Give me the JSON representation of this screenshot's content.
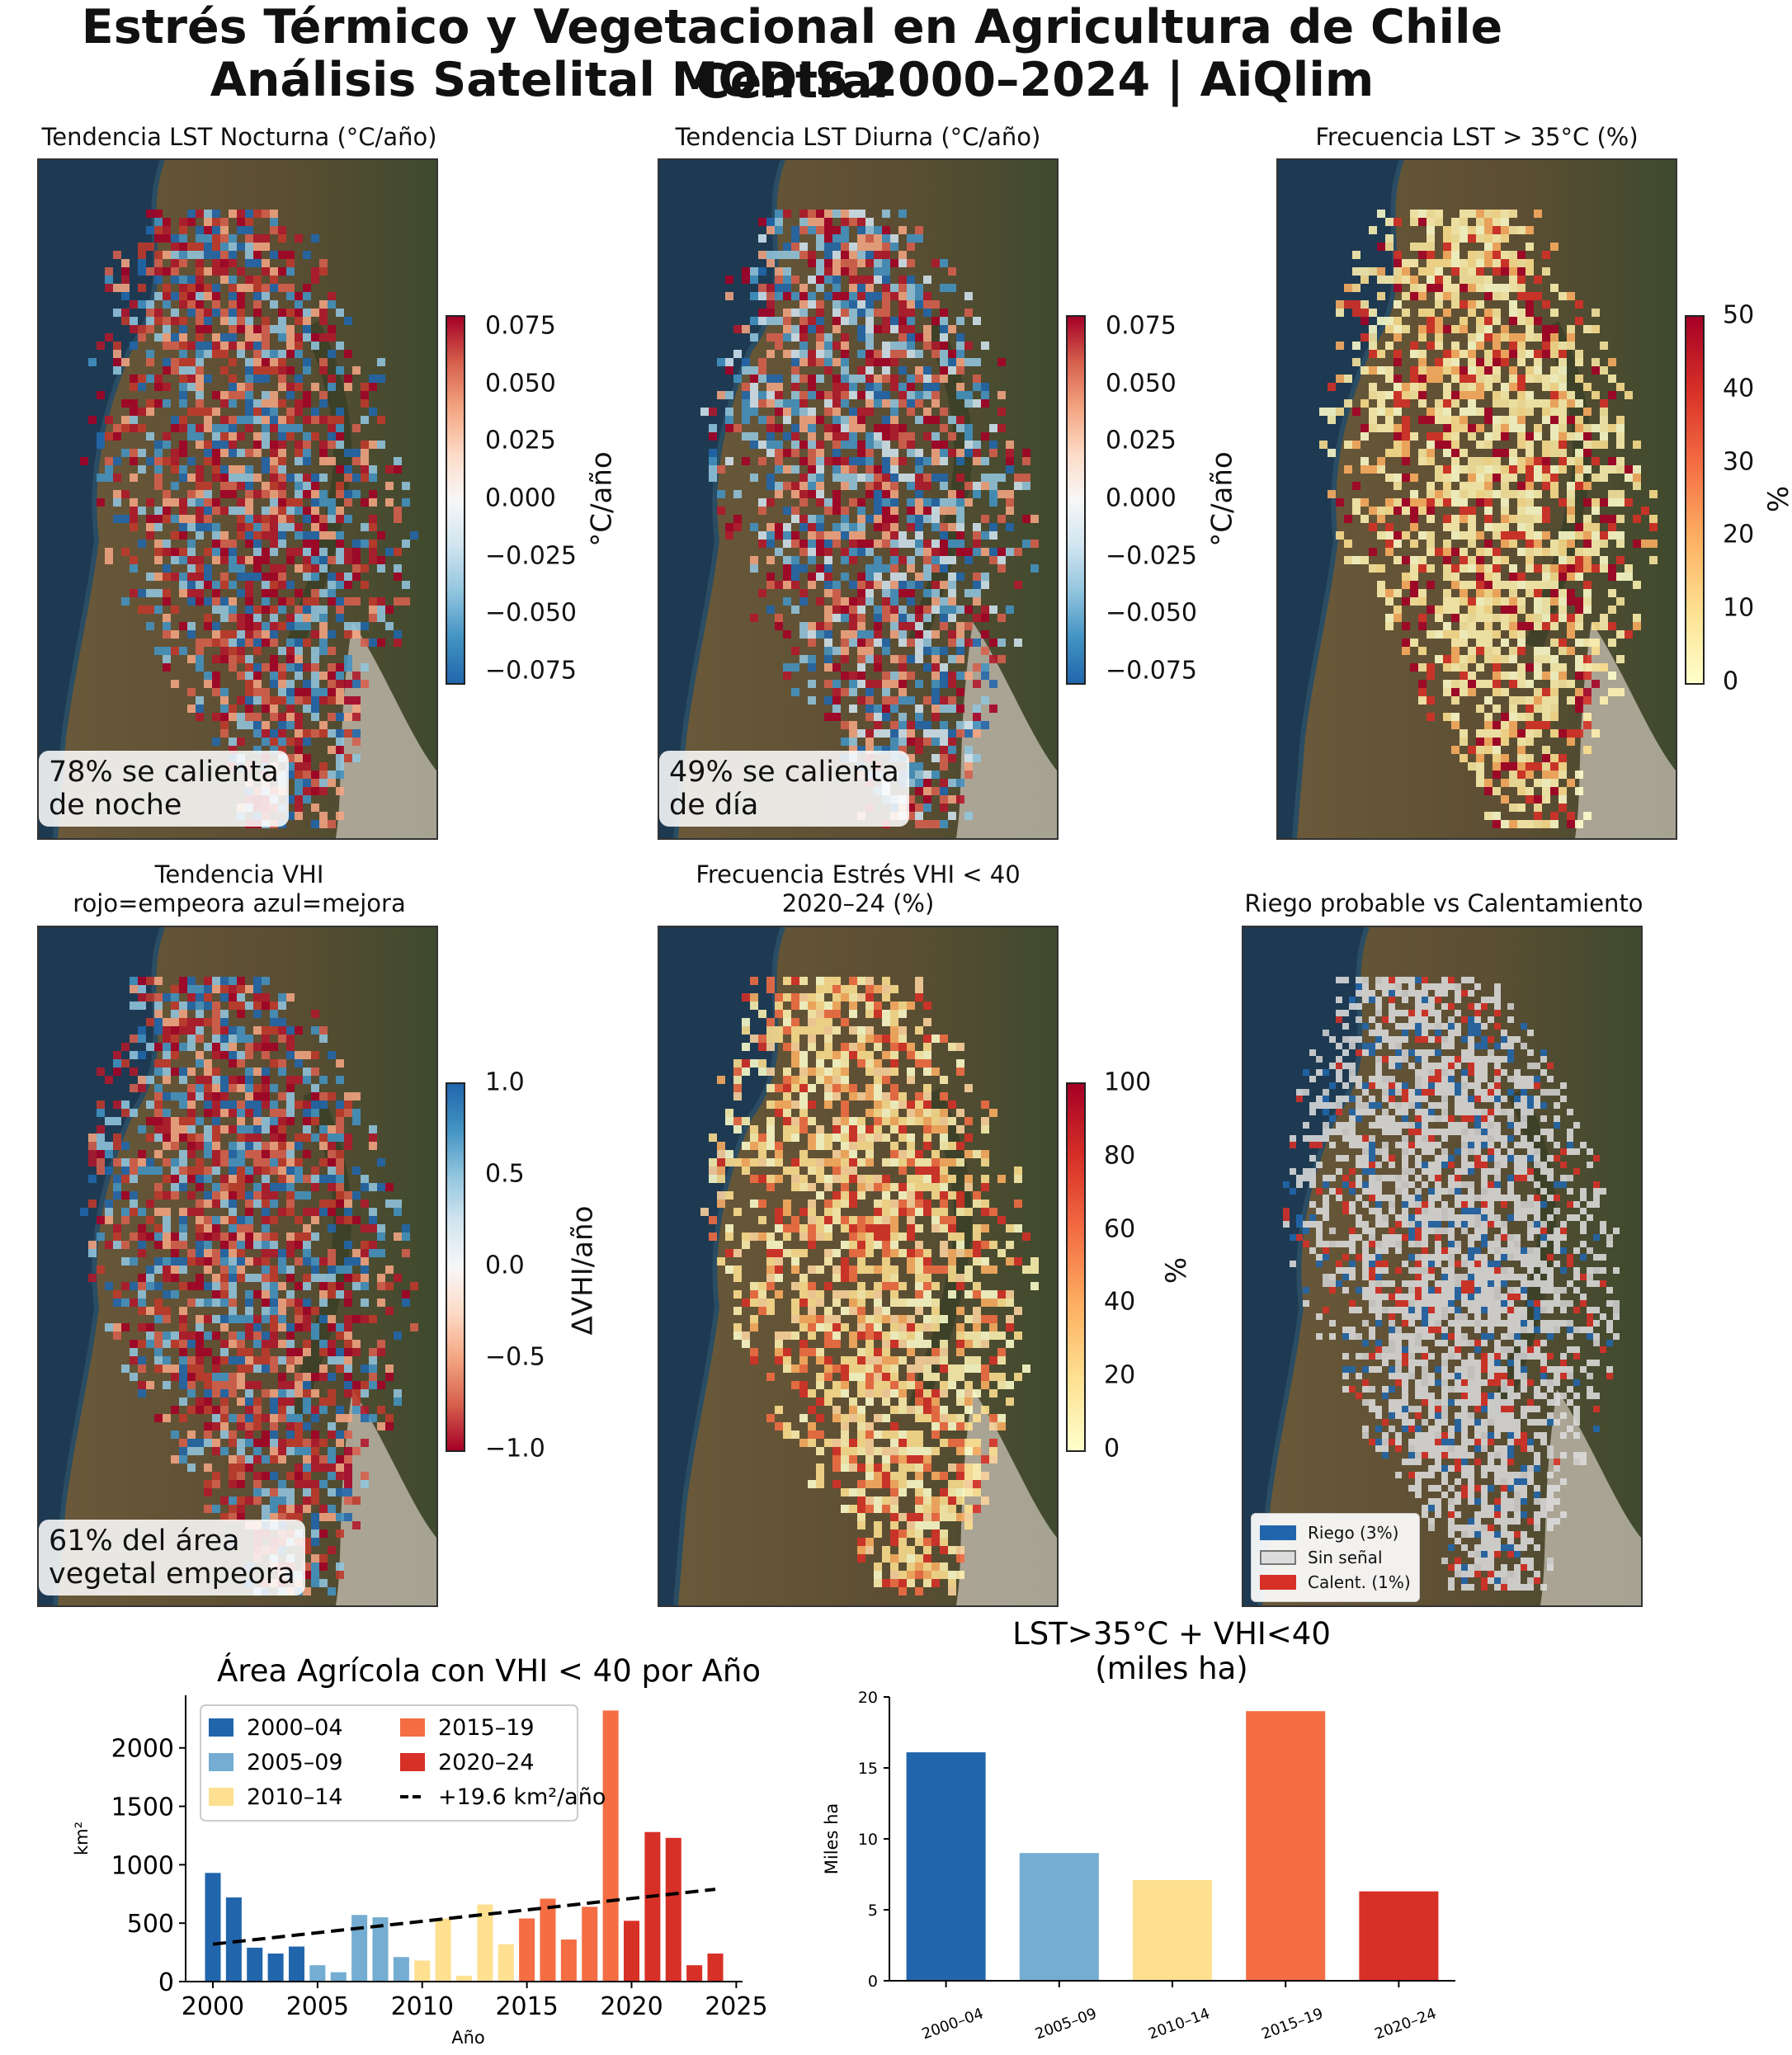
{
  "title": {
    "line1": "Estrés Térmico y Vegetacional en Agricultura de Chile Central",
    "line2": "Análisis Satelital MODIS 2000–2024  |  AiQlim"
  },
  "panels": {
    "lst_night": {
      "title": "Tendencia LST Nocturna (°C/año)",
      "note": "78% se calienta\nde noche",
      "cbar_label": "°C/año",
      "cbar_ticks": [
        "0.075",
        "0.050",
        "0.025",
        "0.000",
        "−0.025",
        "−0.050",
        "−0.075"
      ]
    },
    "lst_day": {
      "title": "Tendencia LST Diurna (°C/año)",
      "note": "49% se calienta\nde día",
      "cbar_label": "°C/año",
      "cbar_ticks": [
        "0.075",
        "0.050",
        "0.025",
        "0.000",
        "−0.025",
        "−0.050",
        "−0.075"
      ]
    },
    "freq_lst35": {
      "title": "Frecuencia LST > 35°C (%)",
      "cbar_label": "%",
      "cbar_ticks": [
        "50",
        "40",
        "30",
        "20",
        "10",
        "0"
      ]
    },
    "vhi_trend": {
      "title_line1": "Tendencia VHI",
      "title_line2": "rojo=empeora azul=mejora",
      "note": "61% del área\nvegetal empeora",
      "cbar_label": "ΔVHI/año",
      "cbar_ticks": [
        "1.0",
        "0.5",
        "0.0",
        "−0.5",
        "−1.0"
      ]
    },
    "vhi_stress": {
      "title_line1": "Frecuencia Estrés VHI < 40",
      "title_line2": "2020–24 (%)",
      "cbar_label": "%",
      "cbar_ticks": [
        "100",
        "80",
        "60",
        "40",
        "20",
        "0"
      ]
    },
    "irrigation": {
      "title": "Riego probable vs Calentamiento",
      "legend": [
        {
          "label": "Riego (3%)",
          "color": "#2166ac"
        },
        {
          "label": "Sin señal",
          "color": "#dcdcdc"
        },
        {
          "label": "Calent. (1%)",
          "color": "#d73027"
        }
      ]
    }
  },
  "chart_data": [
    {
      "type": "bar",
      "title": "Área Agrícola con VHI < 40 por Año",
      "xlabel": "Año",
      "ylabel": "km²",
      "x": [
        2000,
        2001,
        2002,
        2003,
        2004,
        2005,
        2006,
        2007,
        2008,
        2009,
        2010,
        2011,
        2012,
        2013,
        2014,
        2015,
        2016,
        2017,
        2018,
        2019,
        2020,
        2021,
        2022,
        2023,
        2024
      ],
      "values": [
        930,
        720,
        290,
        240,
        300,
        140,
        80,
        570,
        550,
        210,
        180,
        540,
        50,
        660,
        320,
        540,
        710,
        360,
        640,
        2320,
        520,
        1280,
        1230,
        140,
        240
      ],
      "period_colors": [
        "#2166ac",
        "#2166ac",
        "#2166ac",
        "#2166ac",
        "#2166ac",
        "#74add1",
        "#74add1",
        "#74add1",
        "#74add1",
        "#74add1",
        "#fee090",
        "#fee090",
        "#fee090",
        "#fee090",
        "#fee090",
        "#f46d43",
        "#f46d43",
        "#f46d43",
        "#f46d43",
        "#f46d43",
        "#d73027",
        "#d73027",
        "#d73027",
        "#d73027",
        "#d73027"
      ],
      "legend": [
        {
          "label": "2000–04",
          "color": "#2166ac"
        },
        {
          "label": "2005–09",
          "color": "#74add1"
        },
        {
          "label": "2010–14",
          "color": "#fee090"
        },
        {
          "label": "2015–19",
          "color": "#f46d43"
        },
        {
          "label": "2020–24",
          "color": "#d73027"
        },
        {
          "label": "+19.6 km²/año",
          "color": "#000000"
        }
      ],
      "trend": {
        "x": [
          2000,
          2024
        ],
        "y": [
          320,
          790
        ]
      },
      "xlim": [
        1998.7,
        2025.3
      ],
      "ylim": [
        0,
        2450
      ],
      "xticks": [
        2000,
        2005,
        2010,
        2015,
        2020,
        2025
      ],
      "yticks": [
        0,
        500,
        1000,
        1500,
        2000
      ]
    },
    {
      "type": "bar",
      "title_line1": "LST>35°C + VHI<40",
      "title_line2": "(miles ha)",
      "ylabel": "Miles ha",
      "categories": [
        "2000–04",
        "2005–09",
        "2010–14",
        "2015–19",
        "2020–24"
      ],
      "values": [
        16.1,
        9.0,
        7.1,
        19.0,
        6.3
      ],
      "colors": [
        "#2166ac",
        "#74add1",
        "#fee090",
        "#f46d43",
        "#d73027"
      ],
      "ylim": [
        0,
        20
      ],
      "yticks": [
        0,
        5,
        10,
        15,
        20
      ]
    }
  ]
}
